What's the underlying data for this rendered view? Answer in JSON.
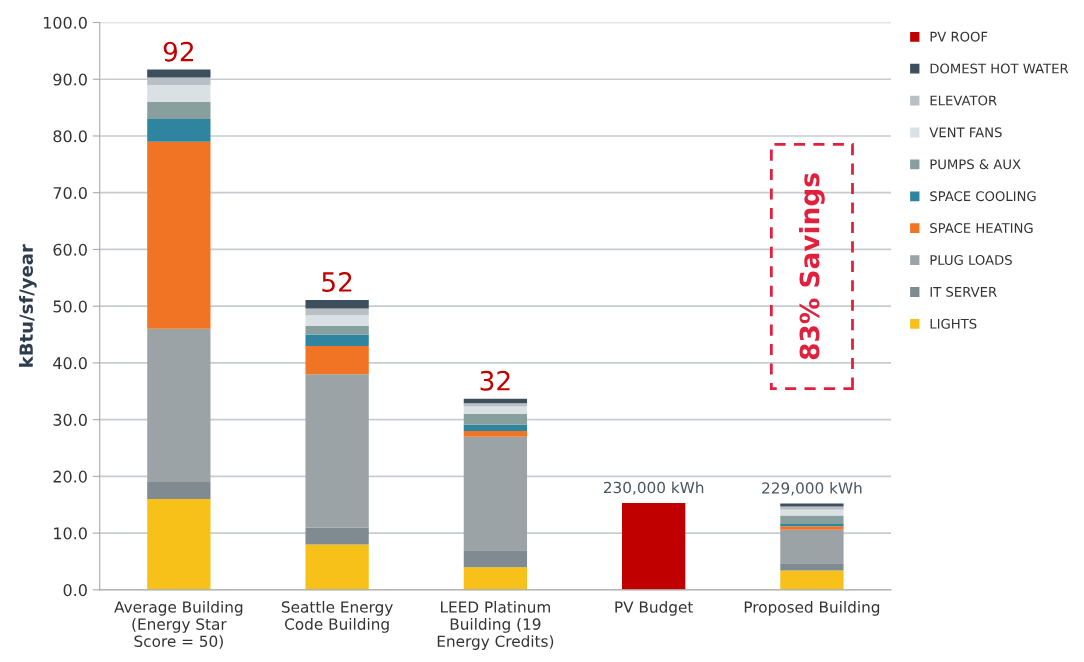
{
  "chart_data": {
    "type": "bar",
    "stacked": true,
    "ylabel": "kBtu/sf/year",
    "categories": [
      "Average Building\n(Energy Star\nScore = 50)",
      "Seattle Energy\nCode Building",
      "LEED Platinum\nBuilding (19\nEnergy Credits)",
      "PV Budget",
      "Proposed Building"
    ],
    "series": [
      {
        "name": "LIGHTS",
        "color": "#f7c11a",
        "values": [
          16,
          8,
          4,
          null,
          3.4
        ]
      },
      {
        "name": "IT SERVER",
        "color": "#7f8b90",
        "values": [
          3,
          3,
          3,
          null,
          1.3
        ]
      },
      {
        "name": "PLUG LOADS",
        "color": "#9ba3a6",
        "values": [
          27,
          27,
          20,
          null,
          5.9
        ]
      },
      {
        "name": "SPACE HEATING",
        "color": "#f07423",
        "values": [
          33,
          5,
          1,
          null,
          0.6
        ]
      },
      {
        "name": "SPACE COOLING",
        "color": "#2f85a0",
        "values": [
          4,
          2,
          1.1,
          null,
          0.4
        ]
      },
      {
        "name": "PUMPS & AUX",
        "color": "#87a09e",
        "values": [
          3,
          1.5,
          1.9,
          null,
          1.5
        ]
      },
      {
        "name": "VENT FANS",
        "color": "#d9e1e5",
        "values": [
          3,
          1.9,
          1.3,
          null,
          1.0
        ]
      },
      {
        "name": "ELEVATOR",
        "color": "#b8c0c5",
        "values": [
          1.3,
          1.2,
          0.6,
          null,
          0.6
        ]
      },
      {
        "name": "DOMEST HOT WATER",
        "color": "#3d4f5c",
        "values": [
          1.4,
          1.5,
          0.8,
          null,
          0.5
        ]
      },
      {
        "name": "PV ROOF",
        "color": "#c00000",
        "values": [
          null,
          null,
          null,
          15.3,
          null
        ]
      }
    ],
    "totals": [
      "92",
      "52",
      "32",
      null,
      null
    ],
    "annotations": [
      {
        "text": "230,000 kWh",
        "x": "PV Budget",
        "y": 15.3
      },
      {
        "text": "229,000 kWh",
        "x": "Proposed Building",
        "y": 15.2
      },
      "83% Savings"
    ],
    "ylim": [
      0,
      100
    ],
    "yticks": [
      {
        "value": 0,
        "label": "0.0"
      },
      {
        "value": 10,
        "label": "10.0"
      },
      {
        "value": 20,
        "label": "20.0"
      },
      {
        "value": 30,
        "label": "30.0"
      },
      {
        "value": 40,
        "label": "40.0"
      },
      {
        "value": 50,
        "label": "50.0"
      },
      {
        "value": 60,
        "label": "60.0"
      },
      {
        "value": 70,
        "label": "70.0"
      },
      {
        "value": 80,
        "label": "80.0"
      },
      {
        "value": 90,
        "label": "90.0"
      },
      {
        "value": 100,
        "label": "100.0"
      }
    ],
    "grid": "y",
    "legend": "right"
  }
}
